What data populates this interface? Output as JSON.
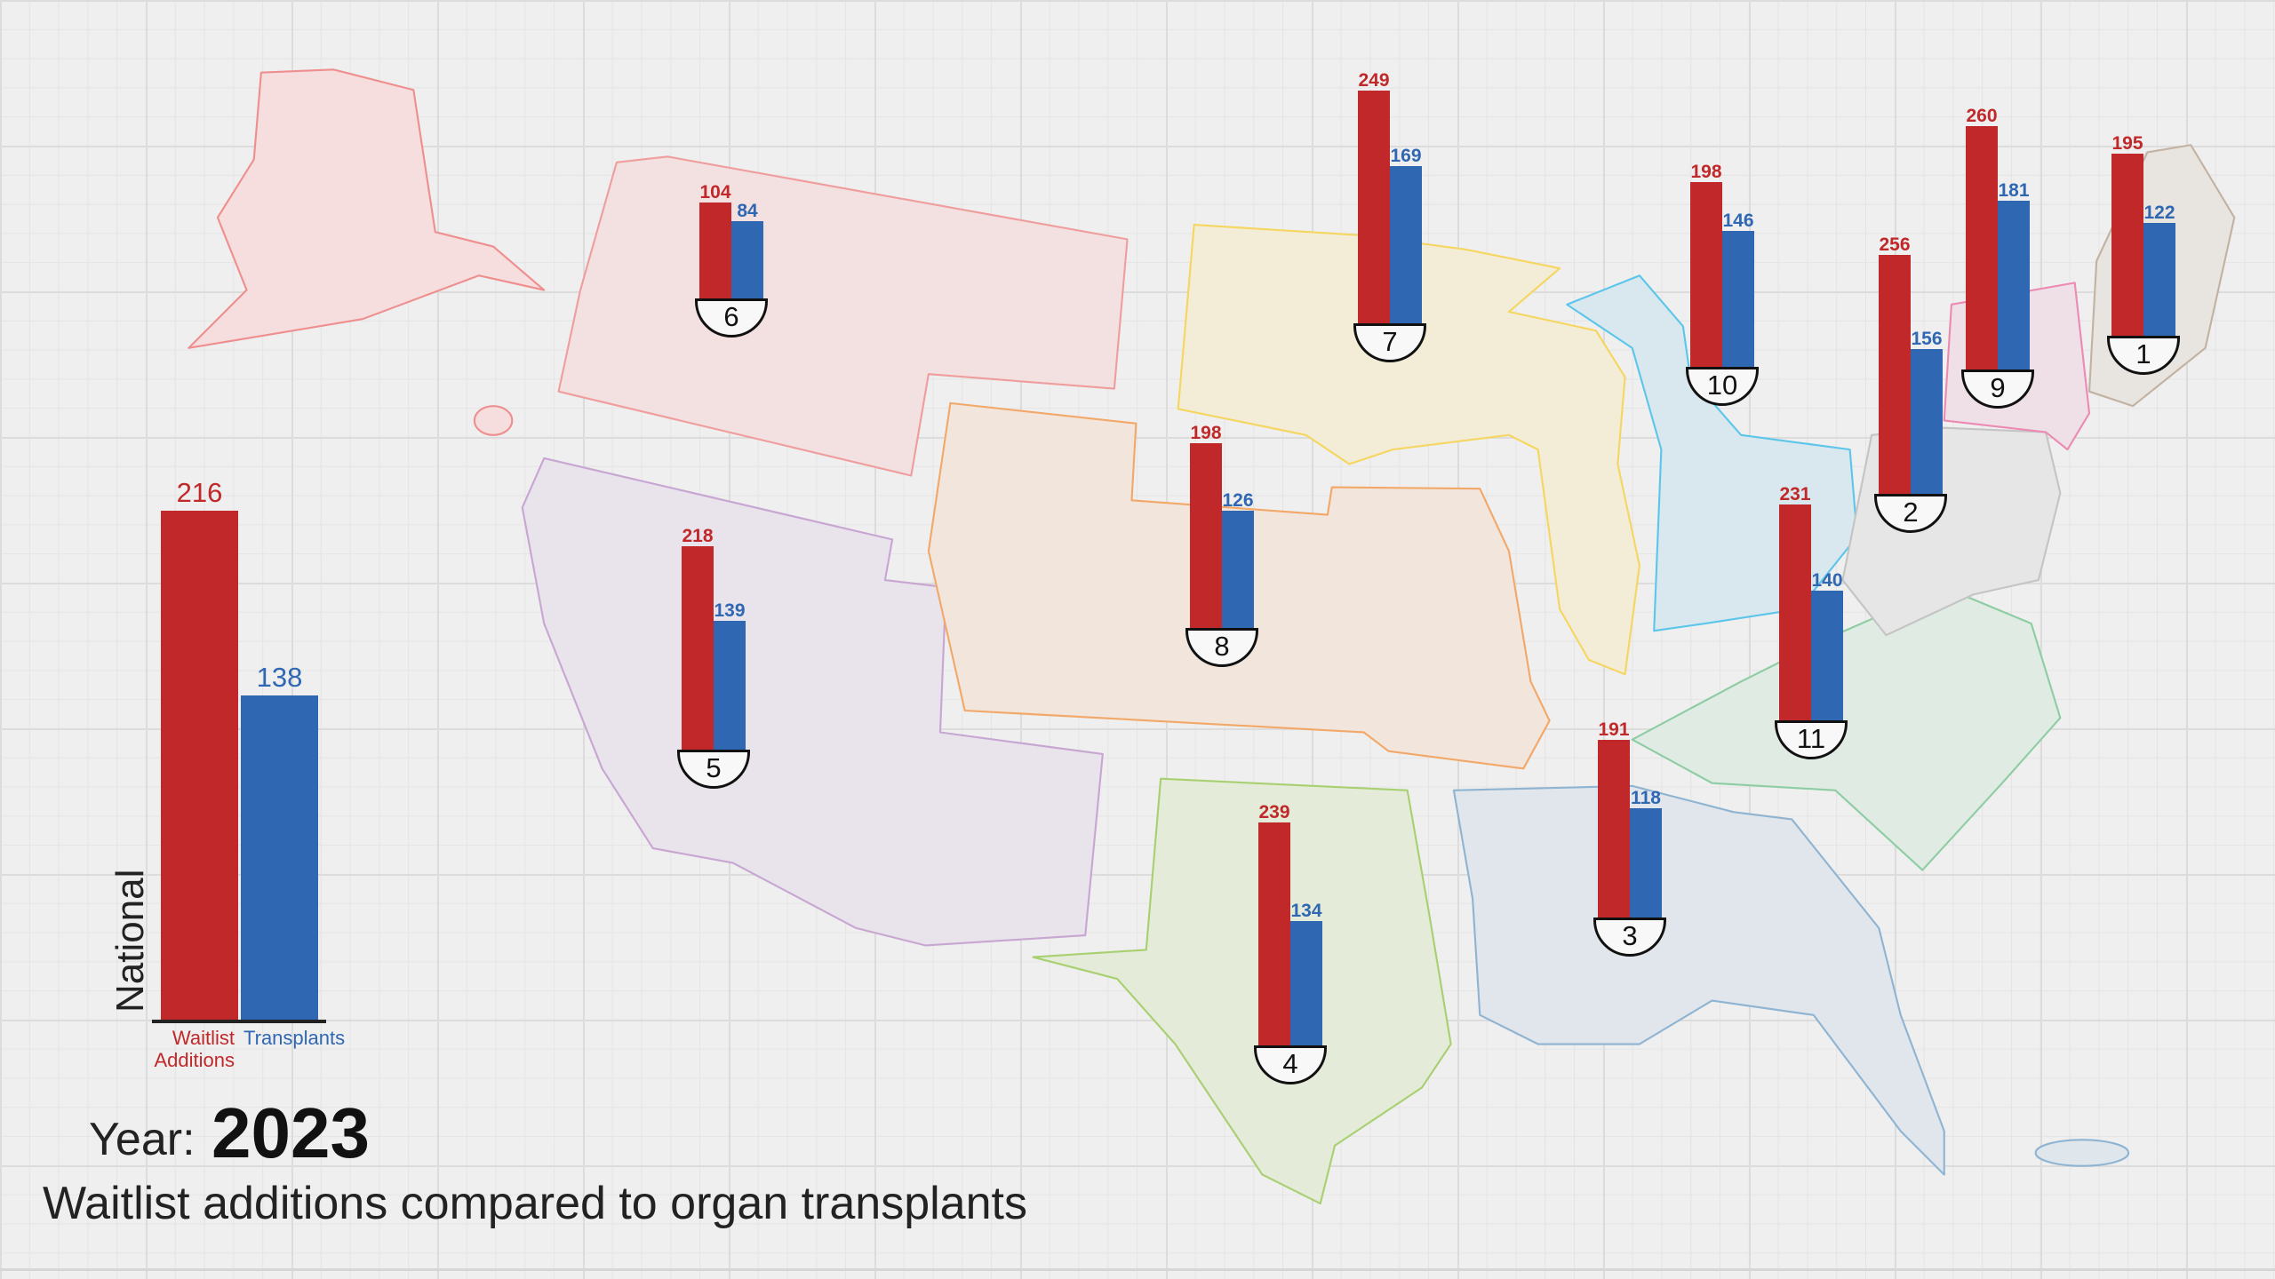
{
  "colors": {
    "waitlist": "#c0282a",
    "transplants": "#2f67b2"
  },
  "year_label": "Year:",
  "year": "2023",
  "title": "Waitlist additions compared to organ transplants",
  "national": {
    "label": "National",
    "waitlist_additions": 216,
    "transplants": 138,
    "waitlist_label_1": "Waitlist",
    "waitlist_label_2": "Additions",
    "transplants_label": "Transplants"
  },
  "chart_data": {
    "type": "bar",
    "title": "Waitlist additions compared to organ transplants",
    "series_names": [
      "Waitlist Additions",
      "Transplants"
    ],
    "regions": [
      {
        "region": "1",
        "waitlist_additions": 195,
        "transplants": 122
      },
      {
        "region": "2",
        "waitlist_additions": 256,
        "transplants": 156
      },
      {
        "region": "3",
        "waitlist_additions": 191,
        "transplants": 118
      },
      {
        "region": "4",
        "waitlist_additions": 239,
        "transplants": 134
      },
      {
        "region": "5",
        "waitlist_additions": 218,
        "transplants": 139
      },
      {
        "region": "6",
        "waitlist_additions": 104,
        "transplants": 84
      },
      {
        "region": "7",
        "waitlist_additions": 249,
        "transplants": 169
      },
      {
        "region": "8",
        "waitlist_additions": 198,
        "transplants": 126
      },
      {
        "region": "9",
        "waitlist_additions": 260,
        "transplants": 181
      },
      {
        "region": "10",
        "waitlist_additions": 198,
        "transplants": 146
      },
      {
        "region": "11",
        "waitlist_additions": 231,
        "transplants": 140
      }
    ],
    "national": {
      "waitlist_additions": 216,
      "transplants": 138
    }
  }
}
